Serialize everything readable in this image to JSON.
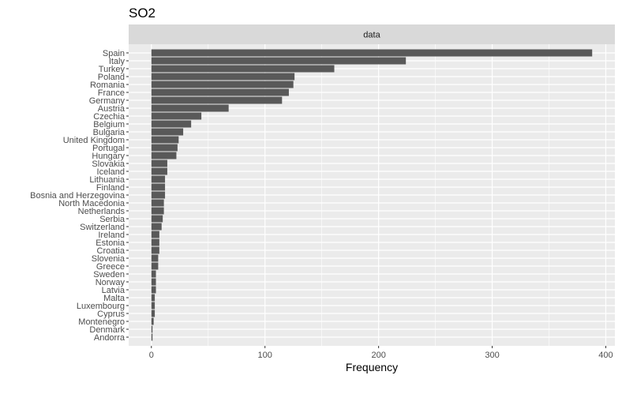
{
  "chart_data": {
    "type": "bar",
    "orientation": "horizontal",
    "title": "SO2",
    "facet_label": "data",
    "xlabel": "Frequency",
    "ylabel": "",
    "xlim": [
      -20,
      408
    ],
    "xticks": [
      0,
      100,
      200,
      300,
      400
    ],
    "grid": true,
    "categories": [
      "Spain",
      "Italy",
      "Turkey",
      "Poland",
      "Romania",
      "France",
      "Germany",
      "Austria",
      "Czechia",
      "Belgium",
      "Bulgaria",
      "United Kingdom",
      "Portugal",
      "Hungary",
      "Slovakia",
      "Iceland",
      "Lithuania",
      "Finland",
      "Bosnia and Herzegovina",
      "North Macedonia",
      "Netherlands",
      "Serbia",
      "Switzerland",
      "Ireland",
      "Estonia",
      "Croatia",
      "Slovenia",
      "Greece",
      "Sweden",
      "Norway",
      "Latvia",
      "Malta",
      "Luxembourg",
      "Cyprus",
      "Montenegro",
      "Denmark",
      "Andorra"
    ],
    "values": [
      388,
      224,
      161,
      126,
      125,
      121,
      115,
      68,
      44,
      35,
      28,
      24,
      23,
      22,
      14,
      14,
      12,
      12,
      12,
      11,
      11,
      10,
      9,
      7,
      7,
      7,
      6,
      6,
      4,
      4,
      4,
      3,
      3,
      3,
      2,
      1,
      1
    ],
    "bar_color": "#595959",
    "panel_color": "#EBEBEB",
    "strip_color": "#D9D9D9"
  }
}
